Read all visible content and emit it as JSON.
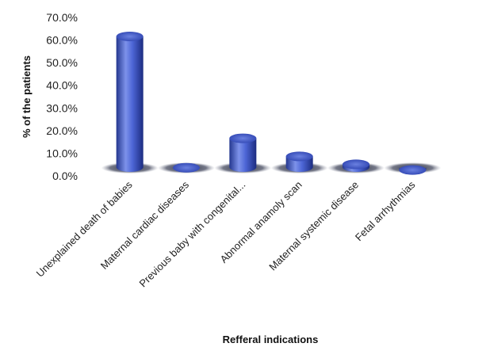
{
  "chart_data": {
    "type": "bar",
    "title": "",
    "xlabel": "Refferal indications",
    "ylabel": "% of the patients",
    "ylim": [
      0,
      70
    ],
    "y_ticks": [
      "0.0%",
      "10.0%",
      "20.0%",
      "30.0%",
      "40.0%",
      "50.0%",
      "60.0%",
      "70.0%"
    ],
    "categories": [
      "Unexplained death of babies",
      "Maternal cardiac diseases",
      "Previous baby with congenital...",
      "Abnormal anamoly scan",
      "Maternal systemic disease",
      "Fetal arrhythmias"
    ],
    "values": [
      63.0,
      5.0,
      18.0,
      10.0,
      6.5,
      4.0
    ],
    "bar_style": "3d-cylinder",
    "grid": false,
    "legend": "none",
    "colors": {
      "bar_light": "#7d92ea",
      "bar_mid": "#3d55c8",
      "bar_dark": "#1c2c80",
      "shadow": "#2a2f40"
    }
  }
}
